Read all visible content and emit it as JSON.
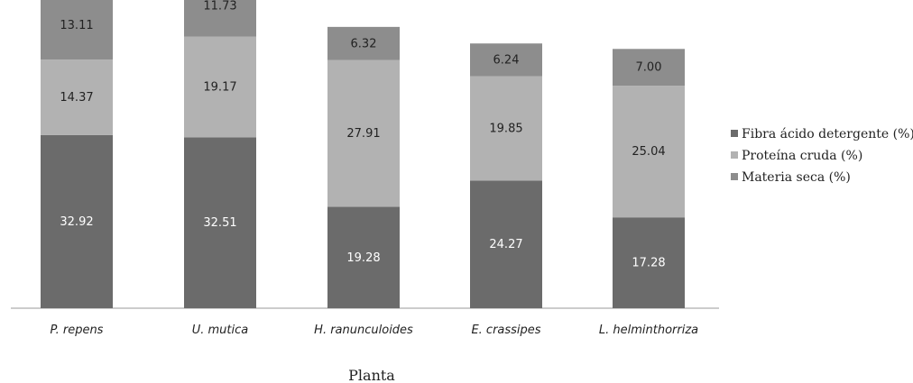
{
  "chart_data": {
    "type": "bar",
    "stacked": true,
    "categories": [
      "P. repens",
      "U. mutica",
      "H. ranunculoides",
      "E. crassipes",
      "L. helminthorriza"
    ],
    "series": [
      {
        "name": "Fibra ácido detergente (%)",
        "color": "#6b6b6b",
        "label_color": "#ffffff",
        "values": [
          32.92,
          32.51,
          19.28,
          24.27,
          17.28
        ],
        "labels": [
          "32.92",
          "32.51",
          "19.28",
          "24.27",
          "17.28"
        ]
      },
      {
        "name": "Proteína cruda (%)",
        "color": "#b2b2b2",
        "label_color": "#222222",
        "values": [
          14.37,
          19.17,
          27.91,
          19.85,
          25.04
        ],
        "labels": [
          "14.37",
          "19.17",
          "27.91",
          "19.85",
          "25.04"
        ]
      },
      {
        "name": "Materia seca (%)",
        "color": "#8d8d8d",
        "label_color": "#222222",
        "values": [
          13.11,
          11.73,
          6.32,
          6.24,
          7.0
        ],
        "labels": [
          "13.11",
          "11.73",
          "6.32",
          "6.24",
          "7.00"
        ]
      }
    ],
    "xlabel": "Planta",
    "ylabel": "",
    "ylim": [
      0,
      64
    ],
    "grid": false,
    "legend_position": "right"
  }
}
